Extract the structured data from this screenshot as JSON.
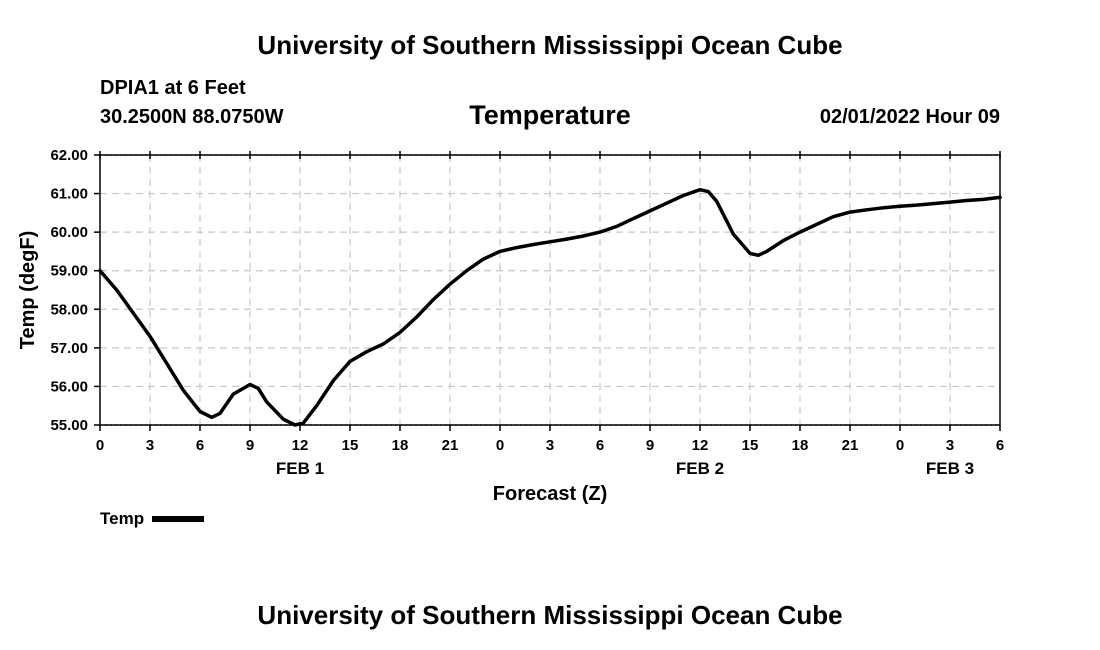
{
  "header": {
    "title": "University of Southern Mississippi Ocean Cube",
    "station": "DPIA1 at 6 Feet",
    "coordinates": "30.2500N  88.0750W",
    "datetime": "02/01/2022 Hour 09"
  },
  "footer": {
    "title": "University of Southern Mississippi Ocean Cube"
  },
  "legend": {
    "label": "Temp"
  },
  "chart_data": {
    "type": "line",
    "title": "Temperature",
    "xlabel": "Forecast (Z)",
    "ylabel": "Temp (degF)",
    "xlim": [
      0,
      54
    ],
    "ylim": [
      55.0,
      62.0
    ],
    "grid": true,
    "y_ticks": [
      "55.00",
      "56.00",
      "57.00",
      "58.00",
      "59.00",
      "60.00",
      "61.00",
      "62.00"
    ],
    "x_tick_labels": [
      "0",
      "3",
      "6",
      "9",
      "12",
      "15",
      "18",
      "21",
      "0",
      "3",
      "6",
      "9",
      "12",
      "15",
      "18",
      "21",
      "0",
      "3",
      "6"
    ],
    "day_labels": [
      {
        "label": "FEB 1",
        "hour": 12
      },
      {
        "label": "FEB 2",
        "hour": 36
      },
      {
        "label": "FEB 3",
        "hour": 51
      }
    ],
    "series": [
      {
        "name": "Temp",
        "color": "#000000",
        "x": [
          0,
          1,
          2,
          3,
          4,
          5,
          6,
          6.7,
          7.2,
          8,
          9,
          9.5,
          10,
          11,
          11.7,
          12.2,
          13,
          14,
          15,
          16,
          17,
          18,
          19,
          20,
          21,
          22,
          23,
          24,
          25,
          26,
          27,
          28,
          29,
          30,
          31,
          32,
          33,
          34,
          35,
          36,
          36.5,
          37,
          38,
          39,
          39.5,
          40,
          41,
          42,
          43,
          44,
          45,
          46,
          47,
          48,
          49,
          50,
          51,
          52,
          53,
          54
        ],
        "y": [
          59.0,
          58.5,
          57.9,
          57.3,
          56.6,
          55.9,
          55.35,
          55.2,
          55.3,
          55.8,
          56.05,
          55.95,
          55.6,
          55.15,
          55.0,
          55.05,
          55.5,
          56.15,
          56.65,
          56.9,
          57.1,
          57.4,
          57.8,
          58.25,
          58.65,
          59.0,
          59.3,
          59.5,
          59.6,
          59.68,
          59.75,
          59.82,
          59.9,
          60.0,
          60.15,
          60.35,
          60.55,
          60.75,
          60.95,
          61.1,
          61.05,
          60.8,
          59.95,
          59.45,
          59.4,
          59.5,
          59.78,
          60.0,
          60.2,
          60.4,
          60.52,
          60.58,
          60.63,
          60.67,
          60.7,
          60.74,
          60.78,
          60.82,
          60.85,
          60.9
        ]
      }
    ]
  }
}
